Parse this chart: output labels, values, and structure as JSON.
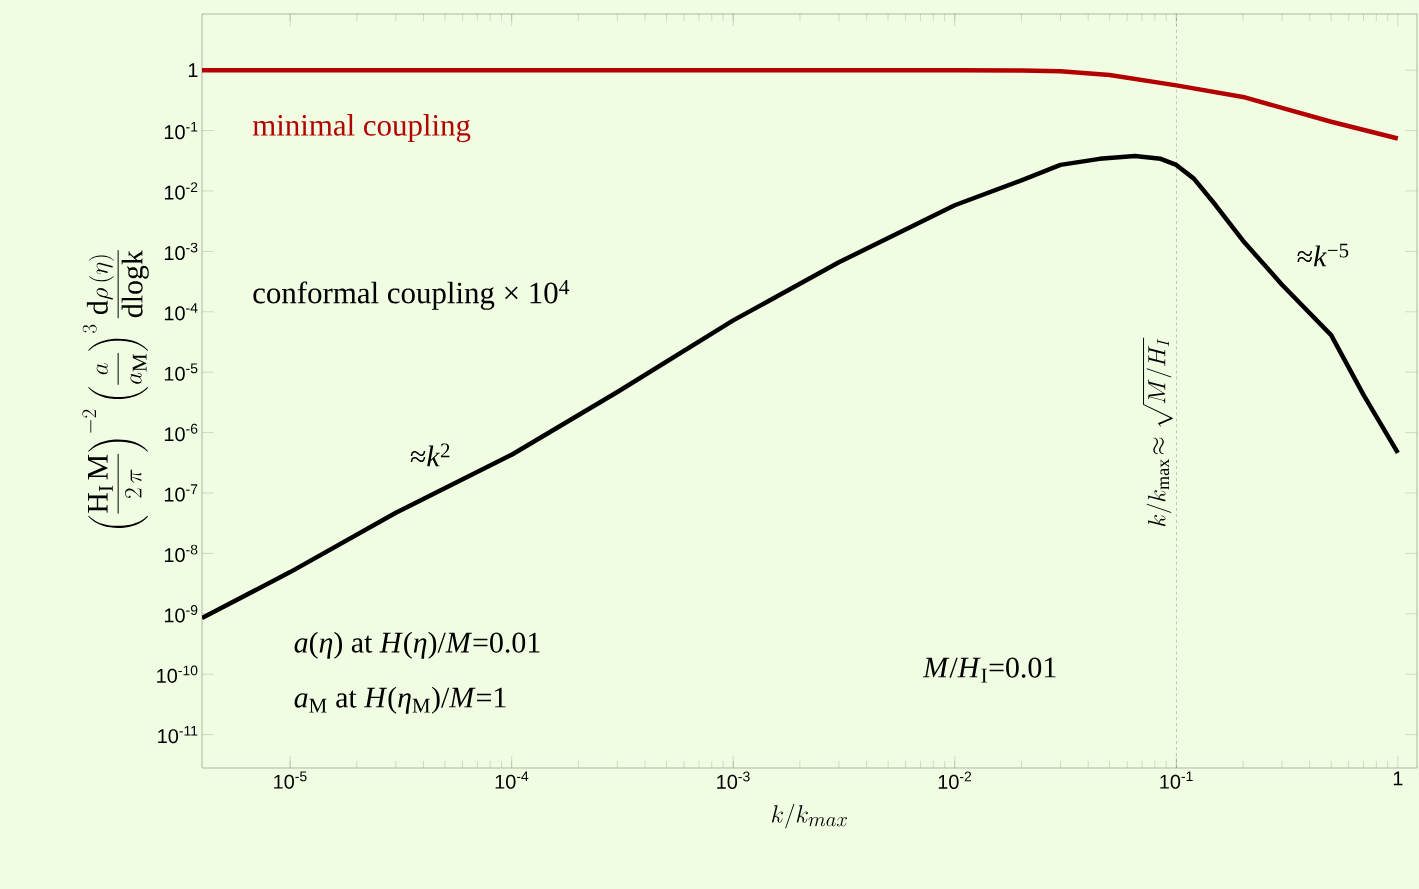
{
  "chart_data": {
    "type": "line",
    "log": "xy",
    "marker": "none",
    "xlabel": "k/k_{max}",
    "ylabel": "\\left(\\frac{\\mathrm{H_I\\,M}}{2\\,\\pi}\\right)^{-2}\\left(\\frac{a}{a_{\\mathrm{M}}}\\right)^{3}\\frac{\\mathrm{d}\\rho\\,(\\eta)}{\\mathrm{dlogk}}",
    "xlim": [
      4e-06,
      1.22
    ],
    "ylim": [
      2.8e-12,
      8.5
    ],
    "xticks": [
      {
        "value": 1e-05,
        "label": "10$^{-5}$"
      },
      {
        "value": 0.0001,
        "label": "10$^{-4}$"
      },
      {
        "value": 0.001,
        "label": "10$^{-3}$"
      },
      {
        "value": 0.01,
        "label": "10$^{-2}$"
      },
      {
        "value": 0.1,
        "label": "10$^{-1}$"
      },
      1
    ],
    "yticks": [
      1,
      {
        "value": 0.1,
        "label": "10$^{-1}$"
      },
      {
        "value": 0.01,
        "label": "10$^{-2}$"
      },
      {
        "value": 0.001,
        "label": "10$^{-3}$"
      },
      {
        "value": 0.0001,
        "label": "10$^{-4}$"
      },
      {
        "value": 1e-05,
        "label": "10$^{-5}$"
      },
      {
        "value": 1e-06,
        "label": "10$^{-6}$"
      },
      {
        "value": 1e-07,
        "label": "10$^{-7}$"
      },
      {
        "value": 1e-08,
        "label": "10$^{-8}$"
      },
      {
        "value": 1e-09,
        "label": "10$^{-9}$"
      },
      {
        "value": 1e-10,
        "label": "10$^{-10}$"
      },
      {
        "value": 1e-11,
        "label": "10$^{-11}$"
      }
    ],
    "series": [
      {
        "name": "minimal coupling",
        "color": "#b30000",
        "x": [
          4e-06,
          0.001,
          0.01,
          0.02,
          0.03,
          0.05,
          0.1,
          0.2,
          0.5,
          1
        ],
        "values": [
          1,
          1,
          1,
          0.99,
          0.96,
          0.83,
          0.56,
          0.36,
          0.14,
          0.074
        ]
      },
      {
        "name": "conformal coupling × 10$^{4}$",
        "color": "#000000",
        "x": [
          4e-06,
          1e-05,
          3e-05,
          0.0001,
          0.0003,
          0.001,
          0.003,
          0.01,
          0.02,
          0.03,
          0.045,
          0.065,
          0.085,
          0.1,
          0.12,
          0.15,
          0.2,
          0.3,
          0.5,
          0.7,
          1
        ],
        "values": [
          8.5e-10,
          4.9e-09,
          4.7e-08,
          4.3e-07,
          4.7e-06,
          7.2e-05,
          0.00066,
          0.0058,
          0.015,
          0.027,
          0.034,
          0.038,
          0.034,
          0.027,
          0.016,
          0.0059,
          0.0015,
          0.00028,
          4.1e-05,
          4.2e-06,
          4.6e-07
        ]
      }
    ],
    "ref_lines": [
      {
        "axis": "x",
        "value": 0.1,
        "label": "k/k_{\\mathrm{max}}\\!\\approx\\sqrt{M/H_I}",
        "line_style": "dashed",
        "color": "#555555"
      }
    ],
    "annotations": [
      "≈*k*$^{2}$",
      "≈*k*$^{−5}$",
      "*a*(*η*) at  *H*(*η*)/*M*=0.01",
      "*a*$_{M}$ at  *H*(*η*$_{M}$)/*M*=1",
      "*M*/*H*$_{I}$=0.01"
    ]
  }
}
